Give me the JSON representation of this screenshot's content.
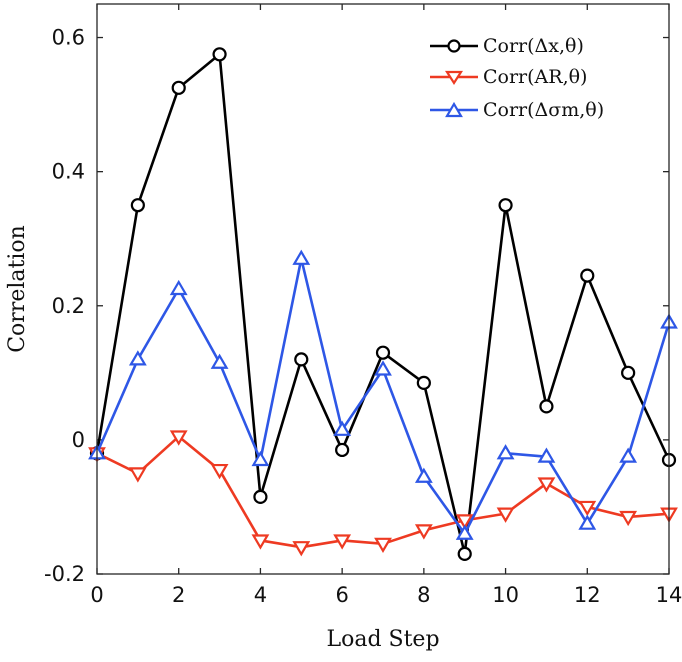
{
  "chart_data": {
    "type": "line",
    "title": "",
    "xlabel": "Load Step",
    "ylabel": "Correlation",
    "xlim": [
      0,
      14
    ],
    "ylim": [
      -0.2,
      0.65
    ],
    "x_ticks": [
      0,
      2,
      4,
      6,
      8,
      10,
      12,
      14
    ],
    "y_ticks": [
      -0.2,
      0,
      0.2,
      0.4,
      0.6
    ],
    "x_tick_labels": [
      "0",
      "2",
      "4",
      "6",
      "8",
      "10",
      "12",
      "14"
    ],
    "y_tick_labels": [
      "-0.2",
      "0",
      "0.2",
      "0.4",
      "0.6"
    ],
    "grid": false,
    "legend_position": "top-right",
    "x": [
      0,
      1,
      2,
      3,
      4,
      5,
      6,
      7,
      8,
      9,
      10,
      11,
      12,
      13,
      14
    ],
    "series": [
      {
        "name": "Corr(Δx,θ)",
        "color": "#000000",
        "marker": "circle",
        "values": [
          -0.02,
          0.35,
          0.525,
          0.575,
          -0.085,
          0.12,
          -0.015,
          0.13,
          0.085,
          -0.17,
          0.35,
          0.05,
          0.245,
          0.1,
          -0.03
        ]
      },
      {
        "name": "Corr(AR,θ)",
        "color": "#ee3a22",
        "marker": "triangle-down",
        "values": [
          -0.02,
          -0.05,
          0.005,
          -0.045,
          -0.15,
          -0.16,
          -0.15,
          -0.155,
          -0.135,
          -0.12,
          -0.11,
          -0.065,
          -0.1,
          -0.115,
          -0.11
        ]
      },
      {
        "name": "Corr(Δσm,θ)",
        "color": "#2e57e6",
        "marker": "triangle-up",
        "values": [
          -0.02,
          0.12,
          0.225,
          0.115,
          -0.03,
          0.27,
          0.015,
          0.105,
          -0.055,
          -0.14,
          -0.02,
          -0.025,
          -0.125,
          -0.025,
          0.175
        ]
      }
    ]
  }
}
